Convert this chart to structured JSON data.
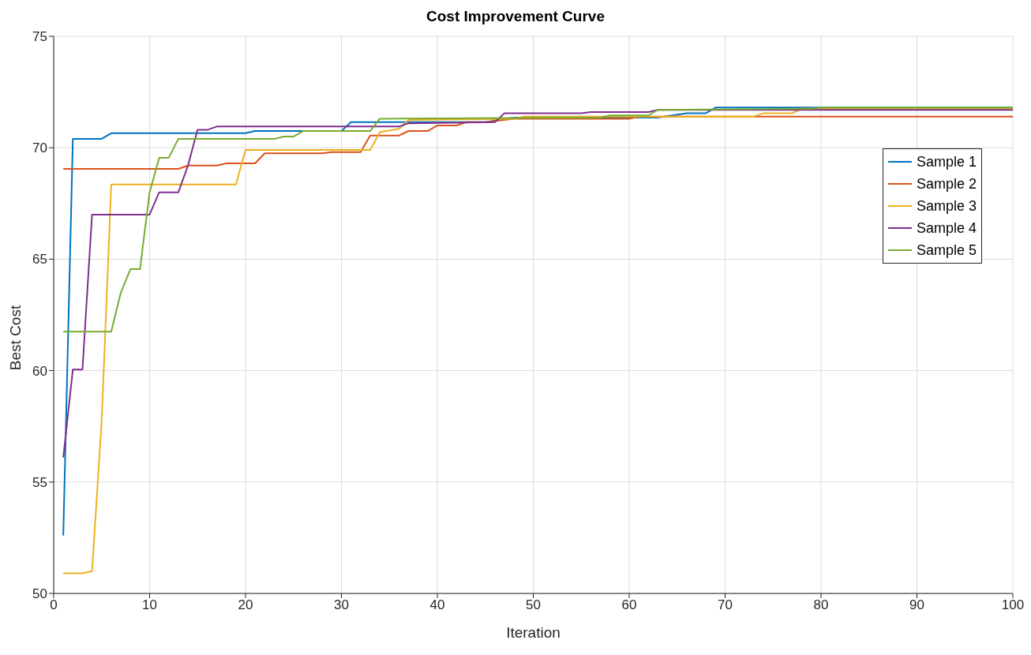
{
  "chart_data": {
    "type": "line",
    "title": "Cost Improvement Curve",
    "xlabel": "Iteration",
    "ylabel": "Best Cost",
    "xlim": [
      0,
      100
    ],
    "xticks": [
      0,
      10,
      20,
      30,
      40,
      50,
      60,
      70,
      80,
      90,
      100
    ],
    "ylim": [
      50,
      75
    ],
    "yticks": [
      50,
      55,
      60,
      65,
      70,
      75
    ],
    "grid": true,
    "legend": "top right",
    "marker": "none",
    "line_style": "solid",
    "series": [
      {
        "name": "Sample 1",
        "color": "#0072bd",
        "x": [
          1,
          2,
          5,
          6,
          20,
          21,
          30,
          31,
          45,
          48,
          63,
          66,
          68,
          69,
          100
        ],
        "values": [
          52.6,
          70.4,
          70.4,
          70.65,
          70.65,
          70.75,
          70.75,
          71.15,
          71.15,
          71.35,
          71.35,
          71.55,
          71.55,
          71.8,
          71.8
        ]
      },
      {
        "name": "Sample 2",
        "color": "#d95319",
        "x": [
          1,
          13,
          14,
          17,
          18,
          21,
          22,
          28,
          29,
          32,
          33,
          36,
          37,
          39,
          40,
          42,
          43,
          45,
          48,
          60,
          61,
          100
        ],
        "values": [
          69.05,
          69.05,
          69.2,
          69.2,
          69.3,
          69.3,
          69.75,
          69.75,
          69.8,
          69.8,
          70.55,
          70.55,
          70.75,
          70.75,
          71.0,
          71.0,
          71.15,
          71.15,
          71.3,
          71.3,
          71.4,
          71.4
        ]
      },
      {
        "name": "Sample 3",
        "color": "#edb120",
        "x": [
          1,
          3,
          4,
          5,
          6,
          19,
          20,
          33,
          34,
          36,
          37,
          48,
          49,
          73,
          74,
          77,
          78,
          100
        ],
        "values": [
          50.9,
          50.9,
          51.0,
          57.7,
          68.35,
          68.35,
          69.9,
          69.9,
          70.7,
          70.85,
          71.25,
          71.3,
          71.4,
          71.4,
          71.55,
          71.55,
          71.75,
          71.75
        ]
      },
      {
        "name": "Sample 4",
        "color": "#7e2f8e",
        "x": [
          1,
          2,
          3,
          4,
          10,
          11,
          13,
          14,
          15,
          16,
          17,
          36,
          37,
          46,
          47,
          55,
          56,
          62,
          63,
          100
        ],
        "values": [
          56.1,
          60.05,
          60.05,
          67.0,
          67.0,
          68.0,
          68.0,
          69.2,
          70.8,
          70.8,
          70.95,
          70.95,
          71.1,
          71.15,
          71.55,
          71.55,
          71.6,
          71.6,
          71.7,
          71.7
        ]
      },
      {
        "name": "Sample 5",
        "color": "#77ac30",
        "x": [
          1,
          6,
          7,
          8,
          9,
          10,
          11,
          12,
          13,
          23,
          24,
          25,
          26,
          33,
          34,
          57,
          58,
          62,
          63,
          79,
          80,
          100
        ],
        "values": [
          61.75,
          61.75,
          63.5,
          64.55,
          64.55,
          68.0,
          69.55,
          69.55,
          70.4,
          70.4,
          70.5,
          70.5,
          70.75,
          70.75,
          71.3,
          71.35,
          71.45,
          71.45,
          71.7,
          71.75,
          71.8,
          71.8
        ]
      }
    ]
  }
}
